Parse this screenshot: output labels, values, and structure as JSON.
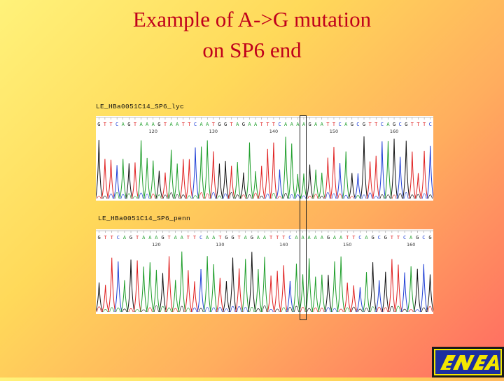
{
  "slide": {
    "title_line1": "Example of A->G mutation",
    "title_line2": "on SP6 end"
  },
  "tracks": [
    {
      "label": "LE_HBa0051C14_SP6_lyc",
      "sequence": "GTTCAGTAAAGTAATTCAATGGTAGAATTTCAAAAGAATTCAGCGTTCAGCGTTTC",
      "ticks": [
        "120",
        "130",
        "140",
        "150",
        "160",
        "170"
      ],
      "mutant_base": "G"
    },
    {
      "label": "LE_HBa0051C14_SP6_penn",
      "sequence": "GTTCAGTAAAGTAATTCAATGGTAGAATTTCAAAAAGAATTCAGCGTTCAGCG",
      "ticks": [
        "120",
        "130",
        "140",
        "150",
        "160"
      ],
      "mutant_base": "A"
    }
  ],
  "colors": {
    "title": "#c0001b",
    "A": "#1e9e2a",
    "C": "#1f3fd6",
    "G": "#111111",
    "T": "#e02020"
  },
  "logo": {
    "text": "ENEA"
  }
}
